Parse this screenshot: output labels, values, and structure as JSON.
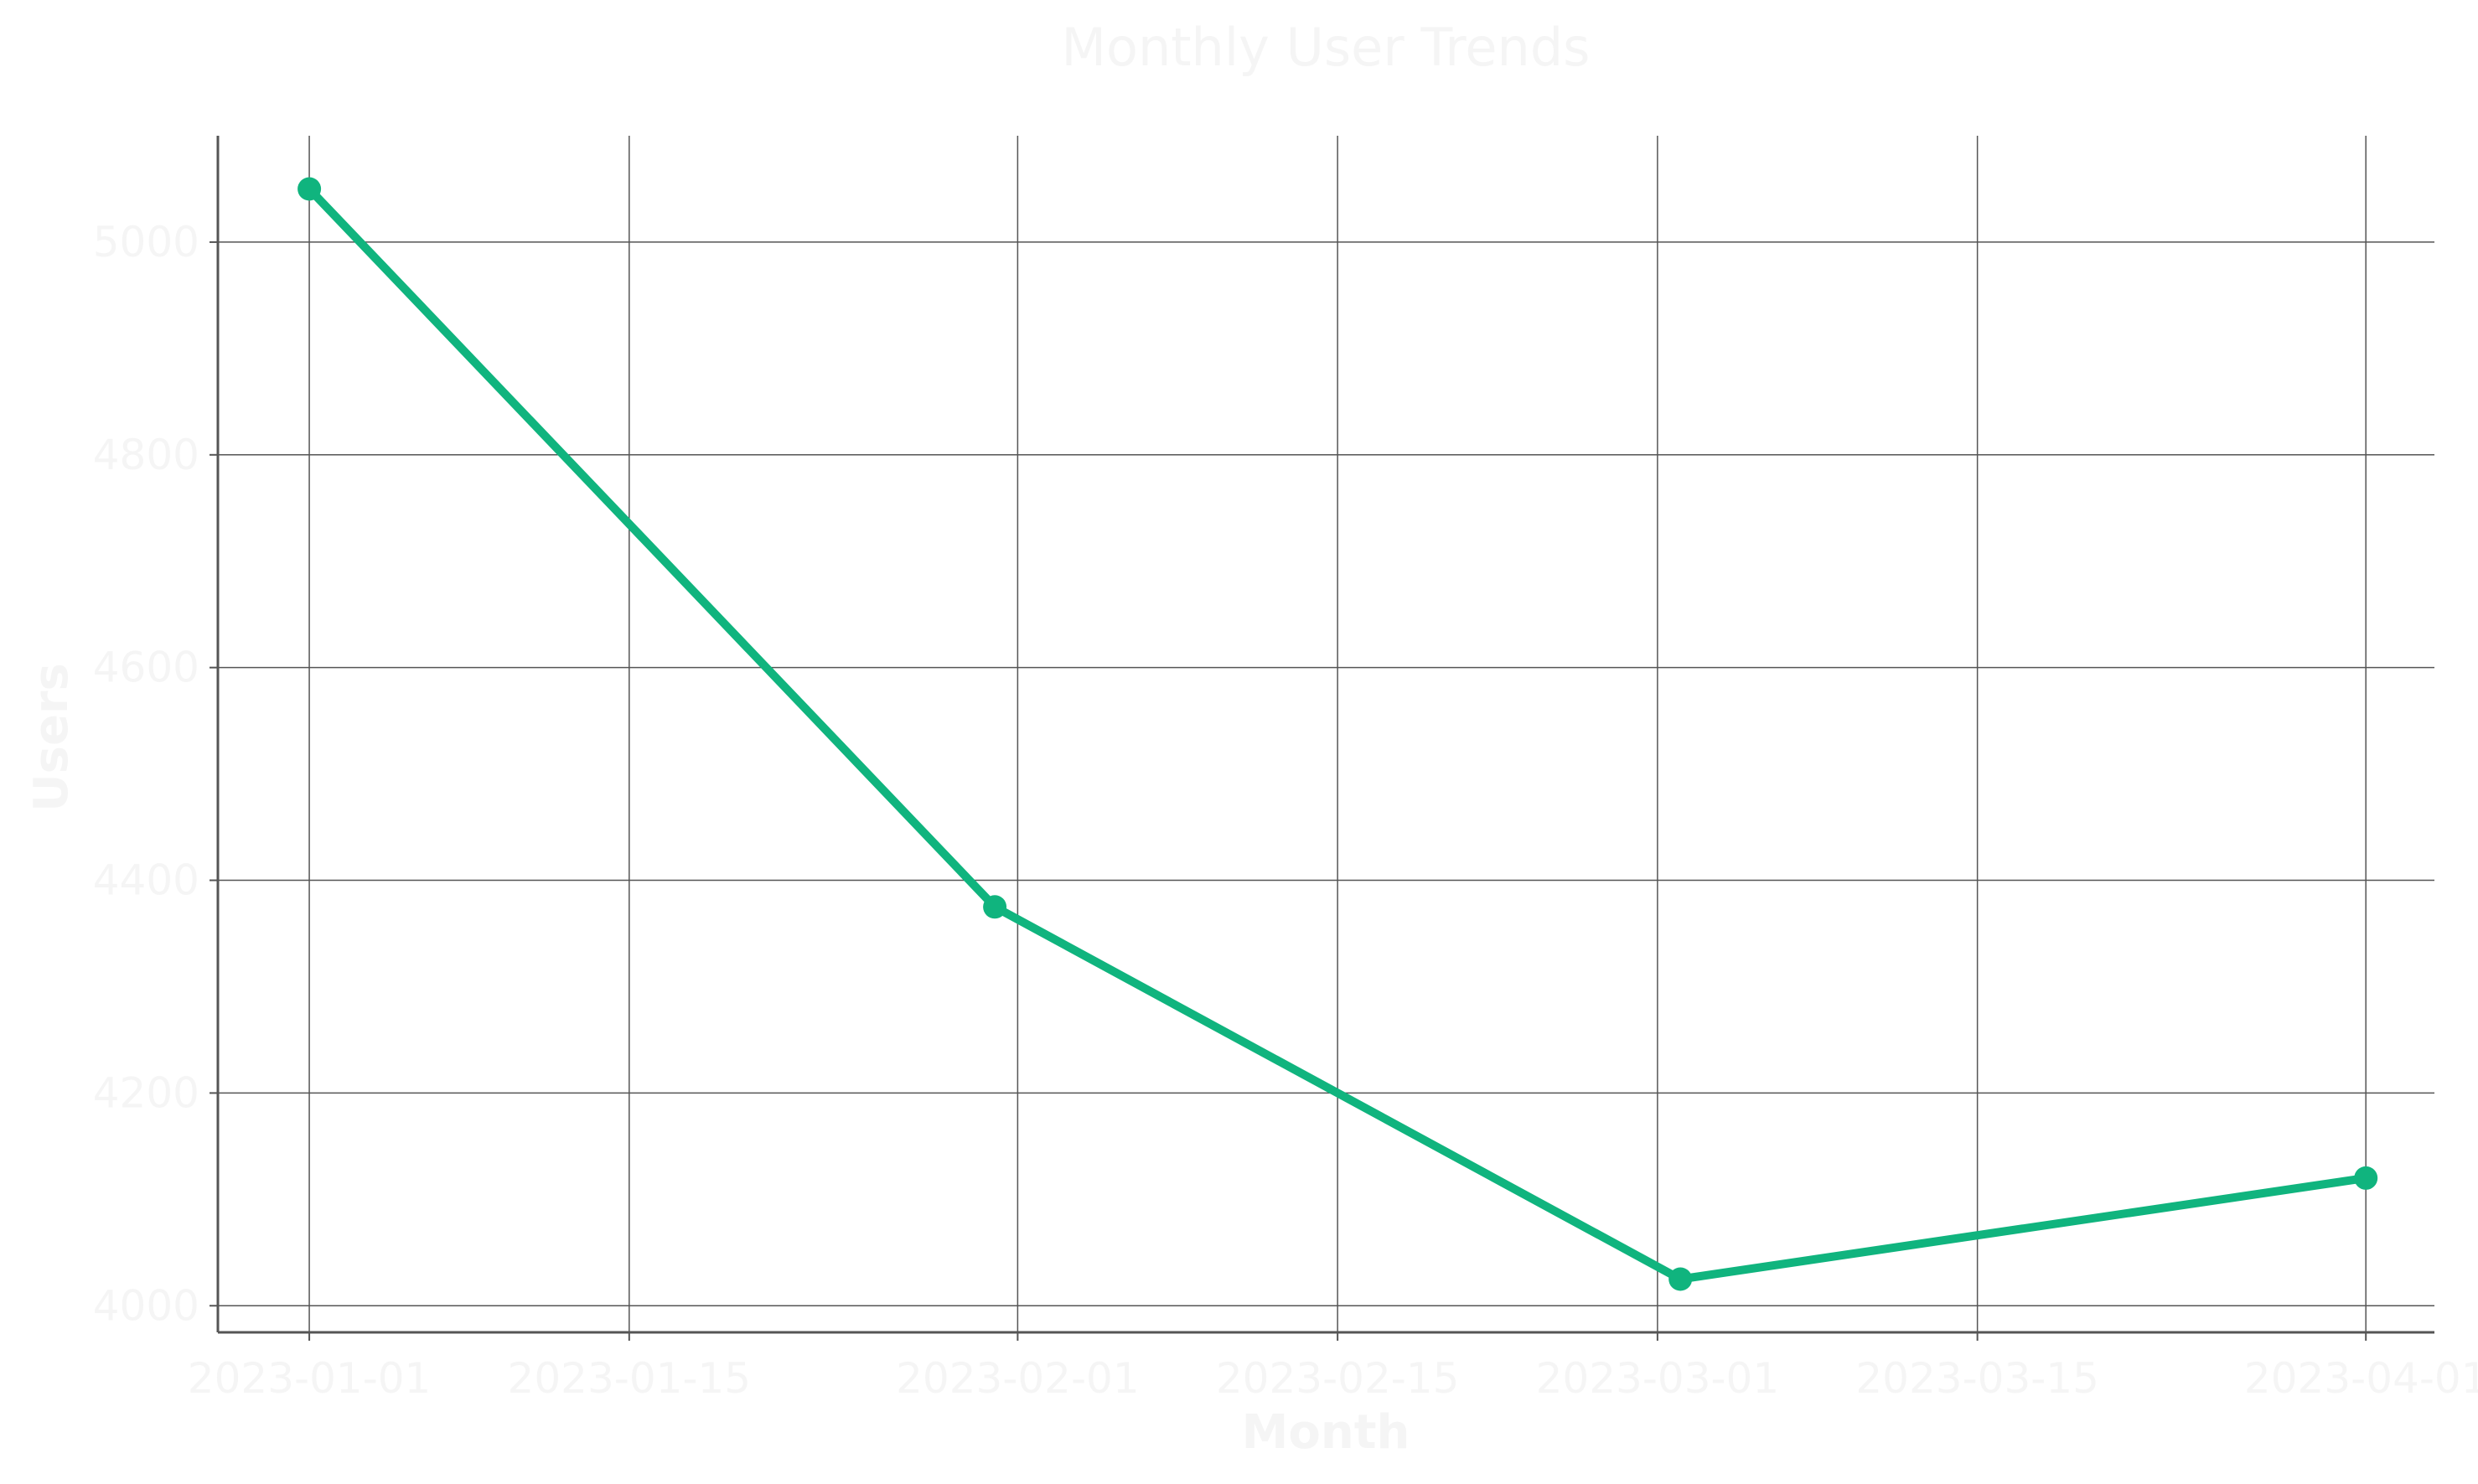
{
  "colors": {
    "background": "#ffffff",
    "text": "#f5f5f5",
    "grid": "#555555",
    "axis": "#555555",
    "series": "#10b47e"
  },
  "chart_data": {
    "type": "line",
    "title": "Monthly User Trends",
    "xlabel": "Month",
    "ylabel": "Users",
    "grid": true,
    "legend": "none",
    "x_axis_type": "date",
    "xlim": [
      "2022-12-28",
      "2023-04-04"
    ],
    "ylim": [
      3975,
      5100
    ],
    "x_ticks": [
      "2023-01-01",
      "2023-01-15",
      "2023-02-01",
      "2023-02-15",
      "2023-03-01",
      "2023-03-15",
      "2023-04-01"
    ],
    "y_ticks": [
      4000,
      4200,
      4400,
      4600,
      4800,
      5000
    ],
    "series": [
      {
        "x": [
          "2023-01-01",
          "2023-01-31",
          "2023-03-02",
          "2023-04-01"
        ],
        "y": [
          5050,
          4375,
          4025,
          4120
        ],
        "marker": "circle"
      }
    ]
  }
}
